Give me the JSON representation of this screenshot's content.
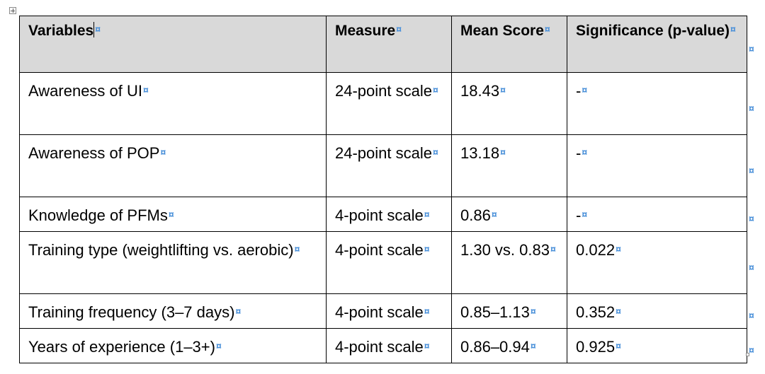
{
  "table": {
    "header": {
      "variables": "Variables",
      "measure": "Measure",
      "mean_score": "Mean Score",
      "significance": "Significance (p-value)"
    },
    "rows": [
      {
        "variable": "Awareness of UI",
        "measure": "24-point scale",
        "mean_score": "18.43",
        "significance": "-"
      },
      {
        "variable": "Awareness of POP",
        "measure": "24-point scale",
        "mean_score": "13.18",
        "significance": "-"
      },
      {
        "variable": "Knowledge of PFMs",
        "measure": "4-point scale",
        "mean_score": "0.86",
        "significance": "-"
      },
      {
        "variable": "Training type (weightlifting vs. aerobic)",
        "measure": "4-point scale",
        "mean_score": "1.30 vs. 0.83",
        "significance": "0.022"
      },
      {
        "variable": "Training frequency (3–7 days)",
        "measure": "4-point scale",
        "mean_score": "0.85–1.13",
        "significance": "0.352"
      },
      {
        "variable": "Years of experience (1–3+)",
        "measure": "4-point scale",
        "mean_score": "0.86–0.94",
        "significance": "0.925"
      }
    ]
  },
  "marks": {
    "cell_end": "¤",
    "space": "·"
  },
  "icons": {
    "table_move_handle": "move-handle-icon",
    "table_resize_handle": "resize-handle-icon"
  },
  "colors": {
    "header_background": "#d9d9d9",
    "formatting_marks": "#4a90d9",
    "border": "#000000"
  }
}
